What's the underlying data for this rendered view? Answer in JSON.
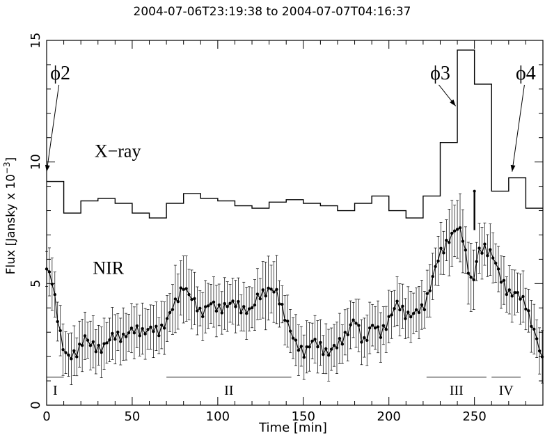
{
  "chart_data": {
    "type": "line",
    "title": "2004-07-06T23:19:38 to 2004-07-07T04:16:37",
    "xlabel": "Time [min]",
    "ylabel": "Flux [Jansky x 10",
    "ylabel_exponent": "−3",
    "ylabel_close": "]",
    "xlim": [
      0,
      290
    ],
    "ylim": [
      0,
      15
    ],
    "x_ticks": [
      0,
      50,
      100,
      150,
      200,
      250
    ],
    "y_ticks": [
      0,
      5,
      10,
      15
    ],
    "grid": false,
    "series": [
      {
        "name": "X-ray",
        "style": "step",
        "edges": [
          0,
          10,
          20,
          30,
          40,
          50,
          60,
          70,
          80,
          90,
          100,
          110,
          120,
          130,
          140,
          150,
          160,
          170,
          180,
          190,
          200,
          210,
          220,
          230,
          240,
          250,
          260,
          270,
          280,
          290
        ],
        "values": [
          9.2,
          7.9,
          8.4,
          8.5,
          8.3,
          7.9,
          7.7,
          8.3,
          8.7,
          8.5,
          8.4,
          8.2,
          8.1,
          8.35,
          8.45,
          8.3,
          8.2,
          8.0,
          8.3,
          8.6,
          8.0,
          7.7,
          8.6,
          10.8,
          14.6,
          13.2,
          8.8,
          9.35,
          8.1
        ]
      },
      {
        "name": "NIR",
        "style": "points-errorbars",
        "knots": [
          [
            0,
            5.6
          ],
          [
            3,
            5.1
          ],
          [
            6,
            3.8
          ],
          [
            9,
            2.6
          ],
          [
            12,
            2.0
          ],
          [
            15,
            1.9
          ],
          [
            18,
            2.2
          ],
          [
            22,
            2.9
          ],
          [
            26,
            2.4
          ],
          [
            30,
            2.3
          ],
          [
            35,
            2.6
          ],
          [
            40,
            2.8
          ],
          [
            45,
            2.9
          ],
          [
            50,
            3.0
          ],
          [
            55,
            3.1
          ],
          [
            60,
            3.1
          ],
          [
            65,
            3.0
          ],
          [
            70,
            3.5
          ],
          [
            75,
            4.1
          ],
          [
            80,
            5.0
          ],
          [
            85,
            4.3
          ],
          [
            90,
            3.8
          ],
          [
            95,
            4.2
          ],
          [
            100,
            3.9
          ],
          [
            105,
            4.2
          ],
          [
            110,
            4.1
          ],
          [
            115,
            4.0
          ],
          [
            120,
            3.9
          ],
          [
            125,
            4.6
          ],
          [
            130,
            4.8
          ],
          [
            135,
            4.5
          ],
          [
            140,
            3.6
          ],
          [
            145,
            2.5
          ],
          [
            150,
            2.2
          ],
          [
            155,
            2.6
          ],
          [
            160,
            2.4
          ],
          [
            165,
            2.2
          ],
          [
            170,
            2.4
          ],
          [
            175,
            3.0
          ],
          [
            180,
            3.5
          ],
          [
            185,
            2.6
          ],
          [
            190,
            3.3
          ],
          [
            195,
            2.9
          ],
          [
            200,
            3.6
          ],
          [
            205,
            4.1
          ],
          [
            210,
            3.8
          ],
          [
            215,
            3.7
          ],
          [
            220,
            4.0
          ],
          [
            225,
            5.1
          ],
          [
            230,
            6.2
          ],
          [
            235,
            6.9
          ],
          [
            240,
            7.2
          ],
          [
            243,
            7.0
          ],
          [
            246,
            5.8
          ],
          [
            249,
            4.9
          ],
          [
            252,
            6.2
          ],
          [
            256,
            6.5
          ],
          [
            260,
            6.3
          ],
          [
            265,
            5.2
          ],
          [
            270,
            4.7
          ],
          [
            275,
            4.5
          ],
          [
            280,
            4.2
          ],
          [
            285,
            3.0
          ],
          [
            290,
            1.7
          ]
        ],
        "error_base": 0.9,
        "error_peak_regions": [
          [
            75,
            85
          ],
          [
            125,
            135
          ],
          [
            235,
            250
          ]
        ]
      }
    ],
    "intervals": [
      {
        "label": "I",
        "range": [
          0,
          10
        ],
        "level": 1.15
      },
      {
        "label": "II",
        "range": [
          70,
          143
        ],
        "level": 1.15
      },
      {
        "label": "III",
        "range": [
          222,
          257
        ],
        "level": 1.15
      },
      {
        "label": "IV",
        "range": [
          260,
          277
        ],
        "level": 1.15
      }
    ],
    "annotations": [
      {
        "label": "ϕ2",
        "text_at": [
          8,
          13.4
        ],
        "arrow_to": [
          0,
          9.6
        ]
      },
      {
        "label": "ϕ3",
        "text_at": [
          230,
          13.4
        ],
        "arrow_to": [
          239,
          12.3
        ]
      },
      {
        "label": "ϕ4",
        "text_at": [
          280,
          13.4
        ],
        "arrow_to": [
          272,
          9.6
        ]
      }
    ],
    "series_labels": [
      {
        "label": "X−ray",
        "at": [
          28,
          10.2
        ]
      },
      {
        "label": "NIR",
        "at": [
          27,
          5.4
        ]
      }
    ],
    "marker": {
      "x": 250,
      "y_from": 7.2,
      "y_to": 8.8
    }
  }
}
